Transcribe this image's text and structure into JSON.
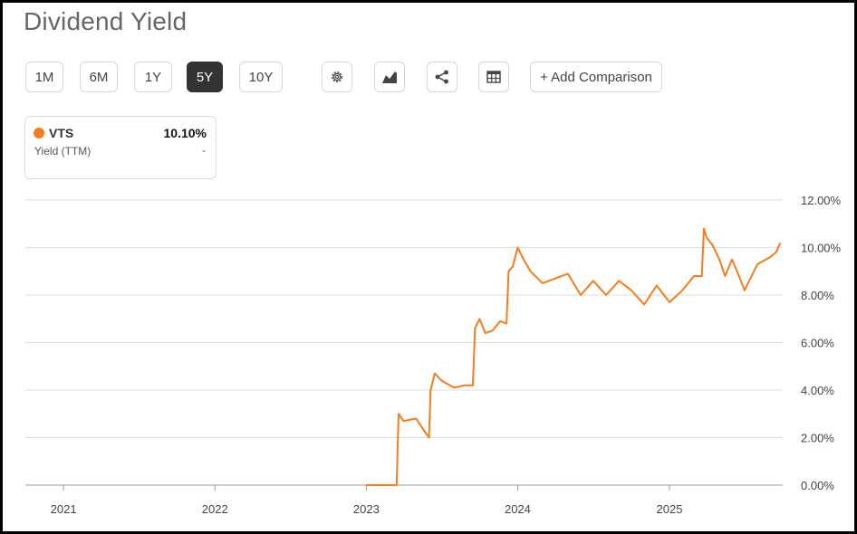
{
  "page": {
    "title": "Dividend Yield"
  },
  "toolbar": {
    "ranges": [
      {
        "label": "1M",
        "active": false
      },
      {
        "label": "6M",
        "active": false
      },
      {
        "label": "1Y",
        "active": false
      },
      {
        "label": "5Y",
        "active": true
      },
      {
        "label": "10Y",
        "active": false
      }
    ],
    "icons": [
      "gear-icon",
      "chart-type-icon",
      "share-icon",
      "table-icon"
    ],
    "add_comparison_label": "+ Add Comparison"
  },
  "legend": {
    "ticker": "VTS",
    "value": "10.10%",
    "metric": "Yield (TTM)",
    "change": "-",
    "color": "#f57c1f"
  },
  "chart_data": {
    "type": "line",
    "title": "Dividend Yield",
    "xlabel": "",
    "ylabel": "",
    "y_ticks": [
      "0.00%",
      "2.00%",
      "4.00%",
      "6.00%",
      "8.00%",
      "10.00%",
      "12.00%"
    ],
    "x_ticks": [
      "2021",
      "2022",
      "2023",
      "2024",
      "2025"
    ],
    "ylim": [
      0,
      12
    ],
    "xlim": [
      "2020-10",
      "2025-10"
    ],
    "grid": true,
    "y_axis_position": "right",
    "series": [
      {
        "name": "VTS",
        "color": "#f57c1f",
        "points": [
          [
            "2023-01",
            0.0
          ],
          [
            "2023-03-15",
            0.0
          ],
          [
            "2023-03-20",
            3.0
          ],
          [
            "2023-04",
            2.7
          ],
          [
            "2023-05",
            2.8
          ],
          [
            "2023-05-20",
            2.3
          ],
          [
            "2023-06",
            2.0
          ],
          [
            "2023-06-05",
            4.0
          ],
          [
            "2023-06-15",
            4.7
          ],
          [
            "2023-07",
            4.4
          ],
          [
            "2023-08",
            4.1
          ],
          [
            "2023-08-25",
            4.2
          ],
          [
            "2023-09-15",
            4.2
          ],
          [
            "2023-09-20",
            6.6
          ],
          [
            "2023-10",
            7.0
          ],
          [
            "2023-10-15",
            6.4
          ],
          [
            "2023-11",
            6.5
          ],
          [
            "2023-11-20",
            6.9
          ],
          [
            "2023-12-05",
            6.8
          ],
          [
            "2023-12-10",
            9.0
          ],
          [
            "2023-12-20",
            9.2
          ],
          [
            "2024-01",
            10.0
          ],
          [
            "2024-01-15",
            9.5
          ],
          [
            "2024-02",
            9.0
          ],
          [
            "2024-03",
            8.5
          ],
          [
            "2024-04",
            8.7
          ],
          [
            "2024-05",
            8.9
          ],
          [
            "2024-06",
            8.0
          ],
          [
            "2024-07",
            8.6
          ],
          [
            "2024-08",
            8.0
          ],
          [
            "2024-09",
            8.6
          ],
          [
            "2024-10",
            8.2
          ],
          [
            "2024-11",
            7.6
          ],
          [
            "2024-12",
            8.4
          ],
          [
            "2025-01",
            7.7
          ],
          [
            "2025-02",
            8.2
          ],
          [
            "2025-03",
            8.8
          ],
          [
            "2025-03-20",
            8.8
          ],
          [
            "2025-03-25",
            10.8
          ],
          [
            "2025-04",
            10.4
          ],
          [
            "2025-04-15",
            10.1
          ],
          [
            "2025-05",
            9.5
          ],
          [
            "2025-05-15",
            8.8
          ],
          [
            "2025-06",
            9.5
          ],
          [
            "2025-06-20",
            8.7
          ],
          [
            "2025-07",
            8.2
          ],
          [
            "2025-08",
            9.3
          ],
          [
            "2025-09",
            9.6
          ],
          [
            "2025-09-15",
            9.8
          ],
          [
            "2025-09-25",
            10.2
          ]
        ]
      }
    ]
  }
}
